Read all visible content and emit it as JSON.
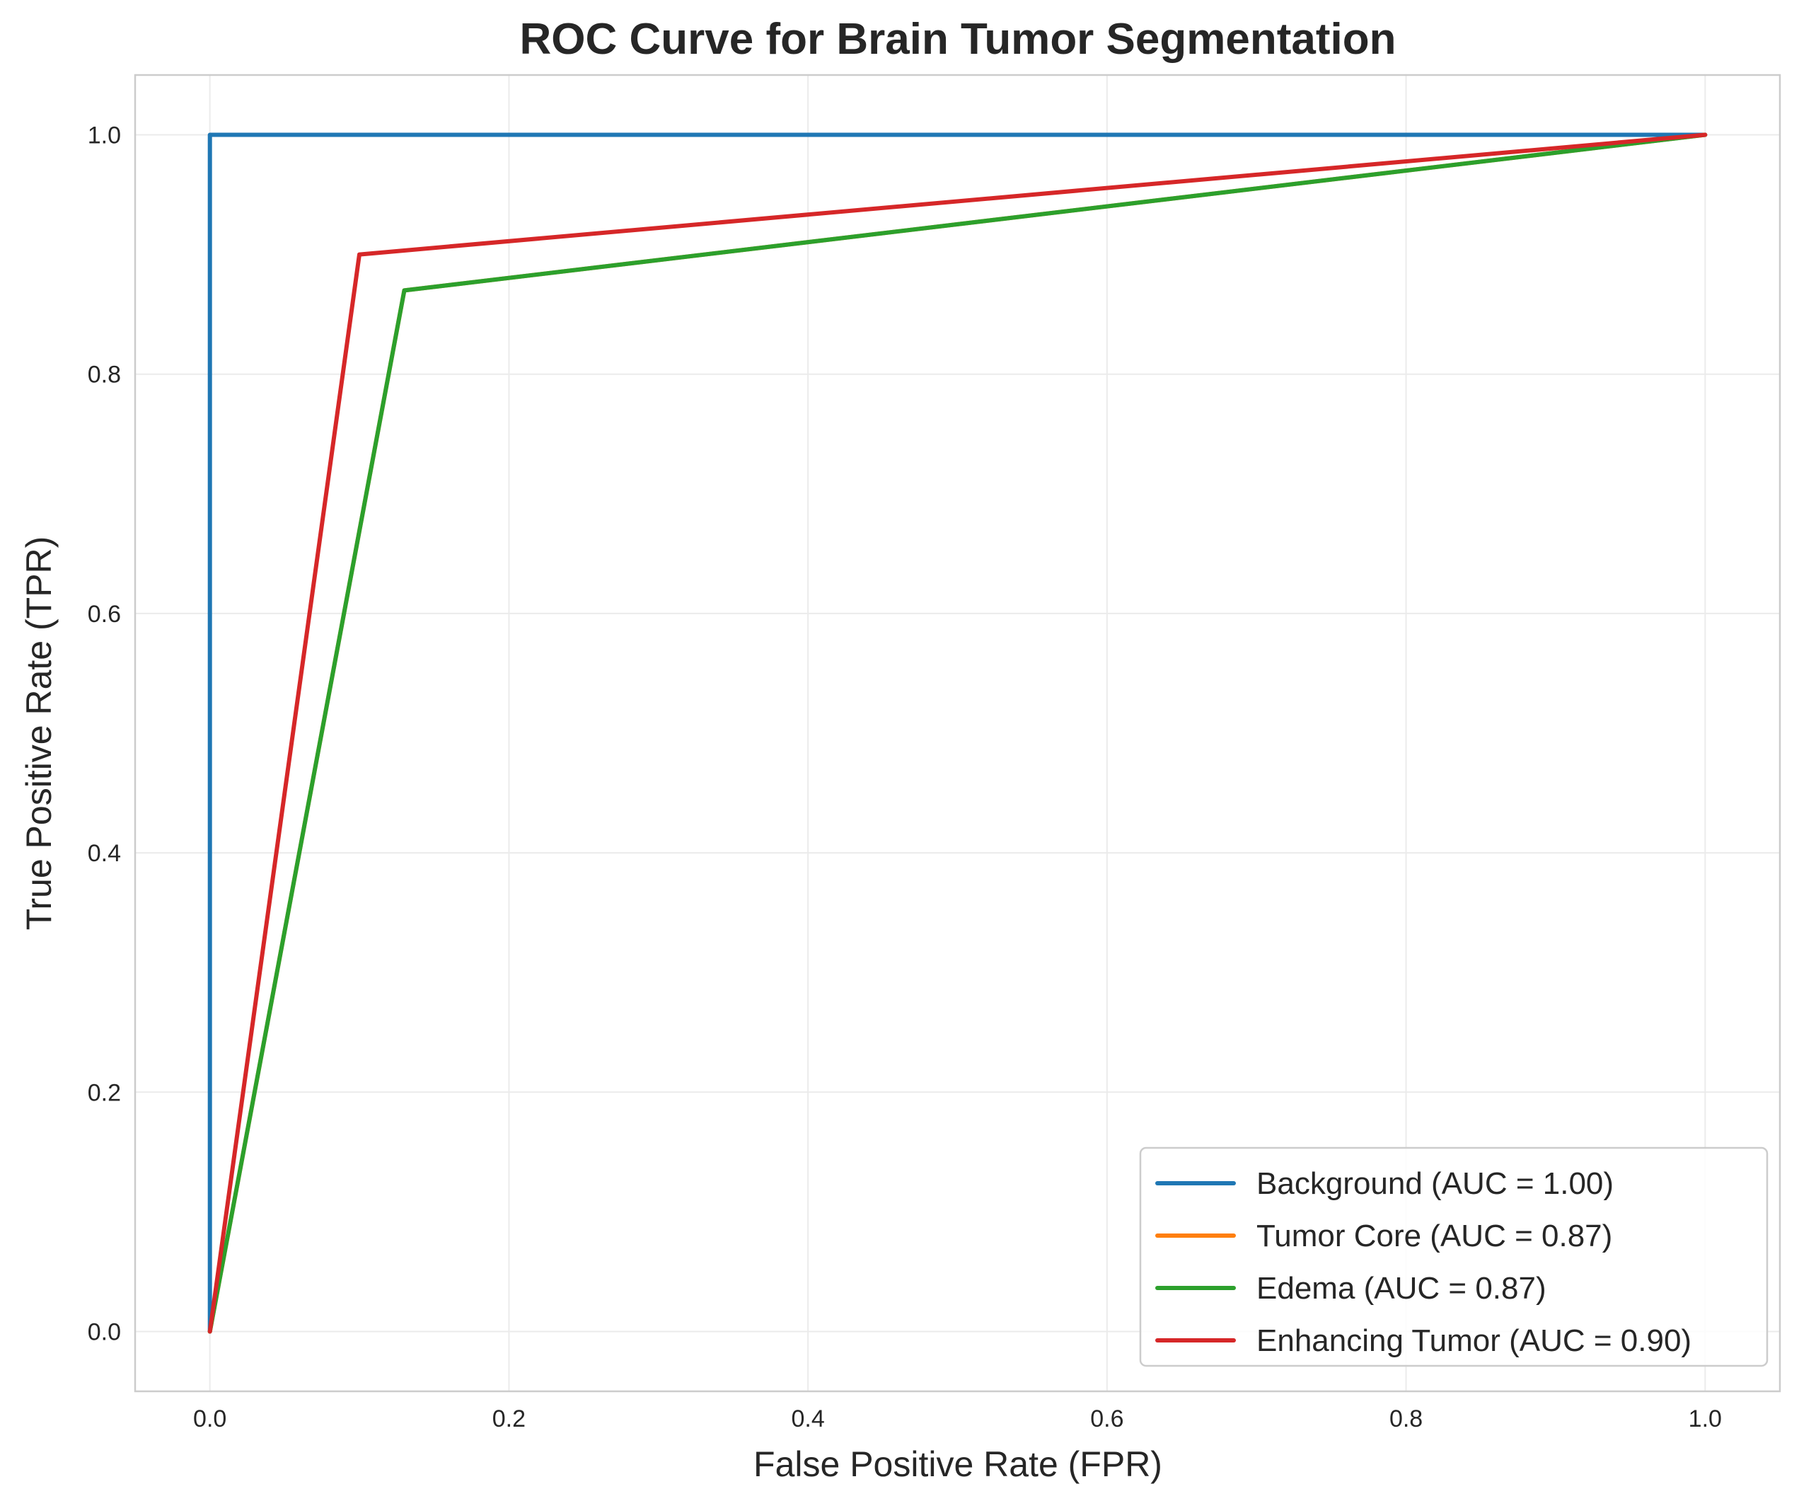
{
  "chart_data": {
    "type": "line",
    "title": "ROC Curve for Brain Tumor Segmentation",
    "xlabel": "False Positive Rate (FPR)",
    "ylabel": "True Positive Rate (TPR)",
    "xlim": [
      -0.05,
      1.05
    ],
    "ylim": [
      -0.05,
      1.05
    ],
    "xticks": [
      0.0,
      0.2,
      0.4,
      0.6,
      0.8,
      1.0
    ],
    "yticks": [
      0.0,
      0.2,
      0.4,
      0.6,
      0.8,
      1.0
    ],
    "xtick_labels": [
      "0.0",
      "0.2",
      "0.4",
      "0.6",
      "0.8",
      "1.0"
    ],
    "ytick_labels": [
      "0.0",
      "0.2",
      "0.4",
      "0.6",
      "0.8",
      "1.0"
    ],
    "grid": true,
    "legend_position": "lower-right",
    "series": [
      {
        "name": "Background (AUC = 1.00)",
        "color": "#1f77b4",
        "x": [
          0.0,
          0.0,
          1.0
        ],
        "y": [
          0.0,
          1.0,
          1.0
        ]
      },
      {
        "name": "Tumor Core (AUC = 0.87)",
        "color": "#ff7f0e",
        "x": [
          0.0,
          0.13,
          1.0
        ],
        "y": [
          0.0,
          0.87,
          1.0
        ]
      },
      {
        "name": "Edema (AUC = 0.87)",
        "color": "#2ca02c",
        "x": [
          0.0,
          0.13,
          1.0
        ],
        "y": [
          0.0,
          0.87,
          1.0
        ]
      },
      {
        "name": "Enhancing Tumor (AUC = 0.90)",
        "color": "#d62728",
        "x": [
          0.0,
          0.1,
          1.0
        ],
        "y": [
          0.0,
          0.9,
          1.0
        ]
      }
    ]
  }
}
